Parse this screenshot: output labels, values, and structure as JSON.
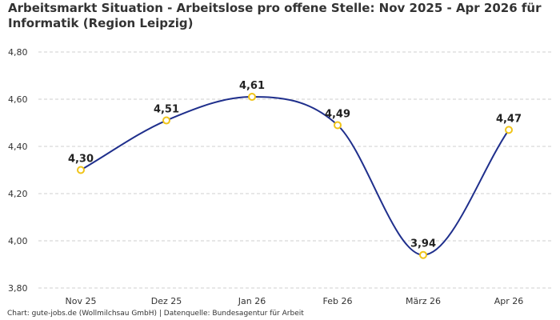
{
  "title": "Arbeitsmarkt Situation - Arbeitslose pro offene Stelle: Nov 2025 - Apr 2026 für Informatik (Region Leipzig)",
  "footer": "Chart: gute-jobs.de (Wollmilchsau GmbH) | Datenquelle: Bundesagentur für Arbeit",
  "colors": {
    "line": "#1f2f8c",
    "marker": "#f0c419",
    "grid": "#cfcfcf"
  },
  "chart_data": {
    "type": "line",
    "categories": [
      "Nov 25",
      "Dez 25",
      "Jan 26",
      "Feb 26",
      "März 26",
      "Apr 26"
    ],
    "values": [
      4.3,
      4.51,
      4.61,
      4.49,
      3.94,
      4.47
    ],
    "value_labels": [
      "4,30",
      "4,51",
      "4,61",
      "4,49",
      "3,94",
      "4,47"
    ],
    "yticks": [
      3.8,
      4.0,
      4.2,
      4.4,
      4.6,
      4.8
    ],
    "ytick_labels": [
      "3,80",
      "4,00",
      "4,20",
      "4,40",
      "4,60",
      "4,80"
    ],
    "ylim": [
      3.8,
      4.8
    ],
    "grid": true,
    "smooth": true
  }
}
